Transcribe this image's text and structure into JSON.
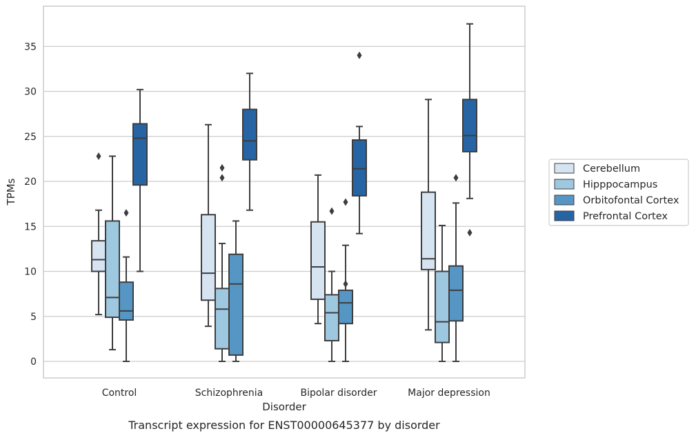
{
  "colors": {
    "background": "#ffffff",
    "grid": "#cccccc",
    "box_edge": "#3d3d3d",
    "series": [
      "#d6e4f2",
      "#9ec7e0",
      "#5696c4",
      "#2664a4"
    ]
  },
  "caption": "Transcript expression for ENST00000645377 by disorder",
  "chart_data": {
    "type": "box",
    "xlabel": "Disorder",
    "ylabel": "TPMs",
    "ylim": [
      -1.8,
      39.5
    ],
    "yticks": [
      0,
      5,
      10,
      15,
      20,
      25,
      30,
      35
    ],
    "grid": "horizontal",
    "legend_position": "right",
    "categories": [
      "Control",
      "Schizophrenia",
      "Bipolar disorder",
      "Major depression"
    ],
    "series": [
      {
        "name": "Cerebellum",
        "boxes": [
          {
            "whislo": 5.2,
            "q1": 10.0,
            "med": 11.3,
            "q3": 13.4,
            "whishi": 16.8,
            "fliers": [
              22.8
            ]
          },
          {
            "whislo": 3.9,
            "q1": 6.8,
            "med": 9.8,
            "q3": 16.3,
            "whishi": 26.3,
            "fliers": []
          },
          {
            "whislo": 4.2,
            "q1": 6.9,
            "med": 10.5,
            "q3": 15.5,
            "whishi": 20.7,
            "fliers": []
          },
          {
            "whislo": 3.5,
            "q1": 10.2,
            "med": 11.4,
            "q3": 18.8,
            "whishi": 29.1,
            "fliers": []
          }
        ]
      },
      {
        "name": "Hipppocampus",
        "boxes": [
          {
            "whislo": 1.3,
            "q1": 4.9,
            "med": 7.1,
            "q3": 15.6,
            "whishi": 22.8,
            "fliers": []
          },
          {
            "whislo": 0.0,
            "q1": 1.4,
            "med": 5.8,
            "q3": 8.1,
            "whishi": 13.1,
            "fliers": [
              20.4,
              21.5
            ]
          },
          {
            "whislo": 0.0,
            "q1": 2.3,
            "med": 5.4,
            "q3": 7.4,
            "whishi": 10.0,
            "fliers": [
              16.7
            ]
          },
          {
            "whislo": 0.0,
            "q1": 2.1,
            "med": 4.4,
            "q3": 10.0,
            "whishi": 15.1,
            "fliers": []
          }
        ]
      },
      {
        "name": "Orbitofontal Cortex",
        "boxes": [
          {
            "whislo": 0.0,
            "q1": 4.6,
            "med": 5.6,
            "q3": 8.8,
            "whishi": 11.6,
            "fliers": [
              16.5
            ]
          },
          {
            "whislo": 0.0,
            "q1": 0.7,
            "med": 8.6,
            "q3": 11.9,
            "whishi": 15.6,
            "fliers": []
          },
          {
            "whislo": 0.0,
            "q1": 4.2,
            "med": 6.5,
            "q3": 7.9,
            "whishi": 12.9,
            "fliers": [
              17.7,
              8.6
            ]
          },
          {
            "whislo": 0.0,
            "q1": 4.5,
            "med": 7.9,
            "q3": 10.6,
            "whishi": 17.6,
            "fliers": [
              20.4
            ]
          }
        ]
      },
      {
        "name": "Prefrontal Cortex",
        "boxes": [
          {
            "whislo": 10.0,
            "q1": 19.6,
            "med": 24.8,
            "q3": 26.4,
            "whishi": 30.2,
            "fliers": []
          },
          {
            "whislo": 16.8,
            "q1": 22.4,
            "med": 24.5,
            "q3": 28.0,
            "whishi": 32.0,
            "fliers": []
          },
          {
            "whislo": 14.2,
            "q1": 18.4,
            "med": 21.4,
            "q3": 24.6,
            "whishi": 26.1,
            "fliers": [
              34.0
            ]
          },
          {
            "whislo": 18.1,
            "q1": 23.3,
            "med": 25.1,
            "q3": 29.1,
            "whishi": 37.5,
            "fliers": [
              14.3
            ]
          }
        ]
      }
    ]
  }
}
